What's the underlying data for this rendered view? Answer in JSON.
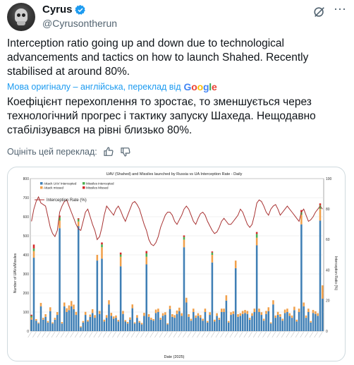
{
  "author": {
    "name": "Cyrus",
    "handle": "@Cyrusontherun"
  },
  "tweet": {
    "text": "Interception ratio going up and down due to technological advancements and tactics on how to launch Shahed. Recently stabilised at around 80%.",
    "translate_label": "Мова оригіналу – англійська, переклад від",
    "google": [
      "G",
      "o",
      "o",
      "g",
      "l",
      "e"
    ],
    "translated_text": "Коефіцієнт перехоплення то зростає, то зменшується через технологічний прогрес і тактику запуску Шахеда. Нещодавно стабілізувався на рівні близько 80%.",
    "rate_label": "Оцініть цей переклад:"
  },
  "colors": {
    "uav_intercepted": "#3f7fb5",
    "attack_missed": "#f0a04b",
    "missiles_intercepted": "#4caf50",
    "missiles_missed": "#d62728",
    "rate_line": "#a83232"
  },
  "chart_data": {
    "type": "bar",
    "title": "UAV (Shahed) and Missiles launched by Russia vs UA Interception Rate - Daily",
    "xlabel": "Date (2025)",
    "ylabel": "Number of UAVs/Missiles",
    "y2label": "Interception Ratio (%)",
    "ylim": [
      0,
      800
    ],
    "y2lim": [
      0,
      100
    ],
    "yticks": [
      0,
      100,
      200,
      300,
      400,
      500,
      600,
      700,
      800
    ],
    "y2ticks": [
      0,
      20,
      40,
      60,
      80,
      100
    ],
    "stacked": true,
    "grid": true,
    "legend_position": "top-left",
    "legend": [
      "Attack UAV Intercepted",
      "Attack missed",
      "Missiles intercepted",
      "Missiles Missed",
      "Interception Rate (%)"
    ],
    "series": [
      {
        "name": "Attack UAV Intercepted",
        "values": [
          60,
          385,
          55,
          40,
          130,
          60,
          75,
          45,
          105,
          40,
          60,
          85,
          540,
          40,
          130,
          100,
          110,
          130,
          115,
          85,
          550,
          20,
          45,
          85,
          50,
          75,
          95,
          70,
          370,
          90,
          380,
          50,
          70,
          140,
          80,
          65,
          70,
          50,
          340,
          90,
          50,
          40,
          60,
          120,
          40,
          70,
          45,
          35,
          80,
          350,
          75,
          60,
          55,
          95,
          100,
          60,
          80,
          85,
          35,
          115,
          75,
          70,
          90,
          105,
          80,
          440,
          150,
          75,
          55,
          100,
          70,
          80,
          70,
          55,
          100,
          45,
          85,
          360,
          50,
          80,
          60,
          100,
          100,
          160,
          45,
          85,
          90,
          330,
          75,
          80,
          90,
          95,
          90,
          60,
          80,
          100,
          450,
          100,
          85,
          55,
          90,
          105,
          40,
          140,
          70,
          85,
          75,
          55,
          95,
          100,
          80,
          70,
          110,
          50,
          100,
          560,
          130,
          70,
          100,
          45,
          95,
          90,
          80,
          580,
          170
        ]
      },
      {
        "name": "Attack missed",
        "values": [
          12,
          35,
          8,
          5,
          18,
          10,
          14,
          8,
          20,
          6,
          10,
          15,
          40,
          8,
          20,
          20,
          25,
          28,
          24,
          16,
          25,
          5,
          8,
          16,
          8,
          12,
          20,
          14,
          30,
          16,
          60,
          10,
          14,
          22,
          16,
          12,
          12,
          9,
          50,
          16,
          8,
          8,
          12,
          20,
          6,
          14,
          8,
          8,
          16,
          40,
          14,
          10,
          8,
          18,
          18,
          10,
          14,
          14,
          6,
          18,
          14,
          14,
          18,
          18,
          14,
          40,
          25,
          14,
          10,
          18,
          12,
          14,
          14,
          10,
          18,
          8,
          14,
          40,
          10,
          14,
          10,
          18,
          18,
          28,
          8,
          14,
          14,
          40,
          14,
          14,
          16,
          16,
          16,
          10,
          14,
          18,
          40,
          18,
          14,
          10,
          16,
          20,
          6,
          22,
          12,
          16,
          14,
          10,
          18,
          18,
          14,
          12,
          18,
          10,
          18,
          50,
          20,
          12,
          18,
          8,
          16,
          14,
          14,
          60,
          70
        ]
      },
      {
        "name": "Missiles intercepted",
        "values": [
          8,
          14,
          0,
          0,
          0,
          0,
          0,
          0,
          0,
          0,
          0,
          0,
          18,
          0,
          0,
          0,
          0,
          0,
          0,
          0,
          12,
          0,
          0,
          0,
          0,
          0,
          0,
          0,
          0,
          0,
          15,
          0,
          0,
          0,
          0,
          0,
          0,
          0,
          12,
          0,
          0,
          0,
          0,
          0,
          0,
          0,
          0,
          0,
          0,
          18,
          0,
          0,
          0,
          0,
          0,
          0,
          0,
          0,
          0,
          0,
          0,
          0,
          0,
          0,
          0,
          14,
          0,
          0,
          0,
          0,
          0,
          0,
          0,
          0,
          0,
          0,
          0,
          12,
          0,
          0,
          0,
          0,
          0,
          0,
          0,
          0,
          0,
          0,
          0,
          0,
          0,
          0,
          0,
          0,
          0,
          0,
          20,
          0,
          0,
          0,
          0,
          0,
          0,
          0,
          0,
          0,
          0,
          0,
          0,
          0,
          0,
          0,
          0,
          0,
          0,
          15,
          0,
          0,
          0,
          0,
          0,
          0,
          0,
          20,
          0
        ]
      },
      {
        "name": "Missiles Missed",
        "values": [
          6,
          20,
          0,
          0,
          0,
          0,
          0,
          0,
          0,
          0,
          0,
          0,
          8,
          0,
          0,
          0,
          0,
          0,
          0,
          0,
          5,
          0,
          0,
          0,
          0,
          0,
          0,
          0,
          0,
          0,
          10,
          0,
          0,
          0,
          0,
          0,
          0,
          0,
          10,
          0,
          0,
          0,
          0,
          0,
          0,
          0,
          0,
          0,
          0,
          12,
          0,
          0,
          0,
          0,
          0,
          0,
          0,
          0,
          0,
          0,
          0,
          0,
          0,
          0,
          0,
          8,
          0,
          0,
          0,
          0,
          0,
          0,
          0,
          0,
          0,
          0,
          0,
          6,
          0,
          0,
          0,
          0,
          0,
          0,
          0,
          0,
          0,
          0,
          0,
          0,
          0,
          0,
          0,
          0,
          0,
          0,
          10,
          0,
          0,
          0,
          0,
          0,
          0,
          0,
          0,
          0,
          0,
          0,
          0,
          0,
          0,
          0,
          0,
          0,
          0,
          10,
          0,
          0,
          0,
          0,
          0,
          0,
          0,
          10,
          0
        ]
      }
    ],
    "rate": [
      72,
      80,
      85,
      88,
      84,
      83,
      82,
      75,
      68,
      64,
      62,
      66,
      78,
      82,
      85,
      86,
      82,
      78,
      74,
      70,
      67,
      66,
      72,
      78,
      80,
      75,
      70,
      66,
      60,
      62,
      68,
      76,
      82,
      80,
      78,
      76,
      80,
      82,
      79,
      75,
      72,
      76,
      80,
      84,
      85,
      83,
      80,
      75,
      70,
      66,
      60,
      57,
      56,
      58,
      62,
      68,
      72,
      76,
      78,
      78,
      76,
      72,
      70,
      73,
      76,
      80,
      82,
      80,
      76,
      72,
      70,
      74,
      77,
      78,
      76,
      72,
      69,
      66,
      64,
      65,
      68,
      72,
      74,
      72,
      70,
      70,
      72,
      74,
      76,
      80,
      78,
      74,
      70,
      68,
      70,
      76,
      84,
      86,
      85,
      82,
      78,
      76,
      80,
      82,
      83,
      80,
      76,
      78,
      80,
      82,
      80,
      78,
      76,
      74,
      72,
      78,
      80,
      76,
      72,
      73,
      75,
      78,
      80,
      82,
      80
    ]
  }
}
